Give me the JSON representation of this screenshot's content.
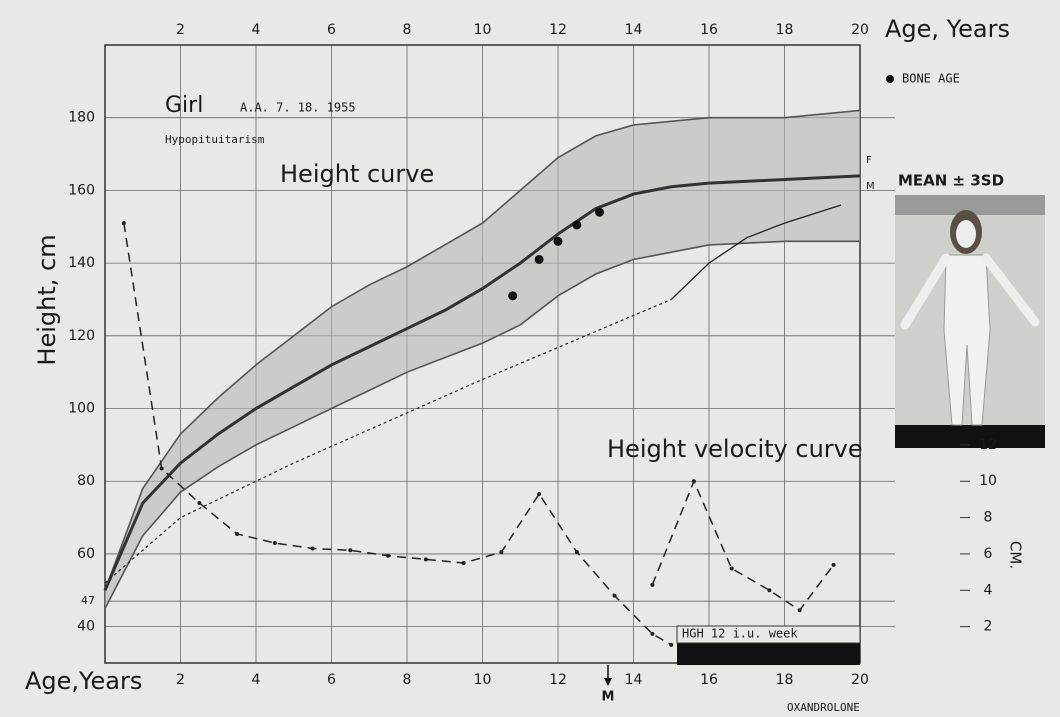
{
  "chart_data": {
    "type": "line",
    "x_label_top": "Age, Years",
    "x_label_bottom": "Age,Years",
    "y_label": "Height, cm",
    "y2_label": "CM.",
    "xlim": [
      0,
      20
    ],
    "xticks": [
      2,
      4,
      6,
      8,
      10,
      12,
      14,
      16,
      18,
      20
    ],
    "ylim": [
      30,
      200
    ],
    "yticks": [
      40,
      47,
      60,
      80,
      100,
      120,
      140,
      160,
      180
    ],
    "y2lim": [
      0,
      34
    ],
    "y2ticks": [
      2,
      4,
      6,
      8,
      10,
      12
    ],
    "grid": true,
    "legend": "upper right",
    "series": [
      {
        "color": "#555555",
        "style": "solid",
        "width": 1.6,
        "x": [
          0,
          1,
          2,
          3,
          4,
          5,
          6,
          7,
          8,
          9,
          10,
          11,
          12,
          13,
          14,
          15,
          16,
          18,
          20
        ],
        "values": [
          50,
          78,
          93,
          103,
          112,
          120,
          128,
          134,
          139,
          145,
          151,
          160,
          169,
          175,
          178,
          179,
          180,
          180,
          182
        ]
      },
      {
        "color": "#333333",
        "style": "solid",
        "width": 3,
        "x": [
          0,
          1,
          2,
          3,
          4,
          5,
          6,
          7,
          8,
          9,
          10,
          11,
          12,
          13,
          14,
          15,
          16,
          18,
          20
        ],
        "values": [
          50,
          74,
          85,
          93,
          100,
          106,
          112,
          117,
          122,
          127,
          133,
          140,
          148,
          155,
          159,
          161,
          162,
          163,
          164
        ]
      },
      {
        "color": "#555555",
        "style": "solid",
        "width": 1.6,
        "x": [
          0,
          1,
          2,
          3,
          4,
          5,
          6,
          7,
          8,
          9,
          10,
          11,
          12,
          13,
          14,
          15,
          16,
          18,
          20
        ],
        "values": [
          45,
          65,
          77,
          84,
          90,
          95,
          100,
          105,
          110,
          114,
          118,
          123,
          131,
          137,
          141,
          143,
          145,
          146,
          146
        ]
      },
      {
        "color": "#222222",
        "style": "dotted",
        "width": 1.2,
        "x": [
          0,
          2,
          5,
          10,
          15
        ],
        "values": [
          52,
          70,
          85,
          108,
          130
        ]
      },
      {
        "color": "#222222",
        "style": "solid",
        "width": 1.3,
        "x": [
          15,
          16,
          17,
          18,
          19.5
        ],
        "values": [
          130,
          140,
          147,
          151,
          156
        ]
      },
      {
        "name": "BONE AGE",
        "kind": "scatter",
        "color": "#111111",
        "x": [
          10.8,
          11.5,
          12,
          12.5,
          13.1
        ],
        "values": [
          131,
          141,
          146,
          150.5,
          154
        ]
      },
      {
        "color": "#222222",
        "style": "dashed",
        "width": 1.5,
        "axis": "y2",
        "x": [
          0.5,
          1.5,
          2.5,
          3.5,
          4.5,
          5.5,
          6.5,
          7.5,
          8.5,
          9.5,
          10.5,
          11.5,
          12.5,
          13.5,
          14.5,
          15
        ],
        "values": [
          24.2,
          10.7,
          8.8,
          7.1,
          6.6,
          6.3,
          6.2,
          5.9,
          5.7,
          5.5,
          6.1,
          9.3,
          6.1,
          3.7,
          1.6,
          1
        ]
      },
      {
        "color": "#222222",
        "style": "dashed",
        "width": 1.5,
        "axis": "y2",
        "x": [
          14.5,
          15.6,
          16.6,
          17.6,
          18.4,
          19.3
        ],
        "values": [
          4.3,
          10,
          5.2,
          4,
          2.9,
          5.4
        ]
      }
    ],
    "annotations": [
      "Girl",
      "A.A. 7. 18. 1955",
      "Hypopituitarism",
      "Height curve",
      "Height velocity curve",
      "MEAN ± 3SD",
      "F",
      "M",
      "HGH 12 i.u. week",
      "M",
      "OXANDROLONE"
    ]
  }
}
